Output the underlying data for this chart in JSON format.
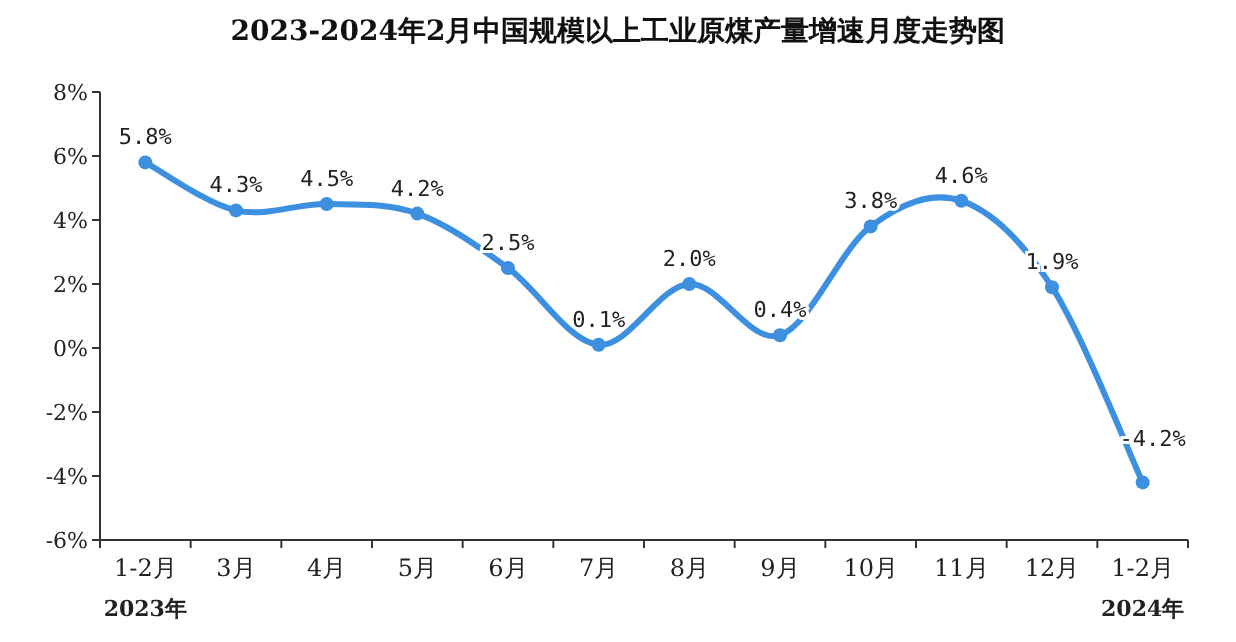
{
  "chart_data": {
    "type": "line",
    "title": "2023-2024年2月中国规模以上工业原煤产量增速月度走势图",
    "categories": [
      "1-2月",
      "3月",
      "4月",
      "5月",
      "6月",
      "7月",
      "8月",
      "9月",
      "10月",
      "11月",
      "12月",
      "1-2月"
    ],
    "series": [
      {
        "color": "#3d8fe0",
        "values": [
          5.8,
          4.3,
          4.5,
          4.2,
          2.5,
          0.1,
          2.0,
          0.4,
          3.8,
          4.6,
          1.9,
          -4.2
        ],
        "value_labels": [
          "5.8%",
          "4.3%",
          "4.5%",
          "4.2%",
          "2.5%",
          "0.1%",
          "2.0%",
          "0.4%",
          "3.8%",
          "4.6%",
          "1.9%",
          "-4.2%"
        ]
      }
    ],
    "ylim": [
      -6,
      8
    ],
    "yticks": [
      {
        "value": -6,
        "label": "-6%"
      },
      {
        "value": -4,
        "label": "-4%"
      },
      {
        "value": -2,
        "label": "-2%"
      },
      {
        "value": 0,
        "label": "0%"
      },
      {
        "value": 2,
        "label": "2%"
      },
      {
        "value": 4,
        "label": "4%"
      },
      {
        "value": 6,
        "label": "6%"
      },
      {
        "value": 8,
        "label": "8%"
      }
    ],
    "annotations": [
      "2023年",
      "2024年"
    ],
    "grid": false,
    "marker": "circle",
    "line_style": "solid"
  }
}
